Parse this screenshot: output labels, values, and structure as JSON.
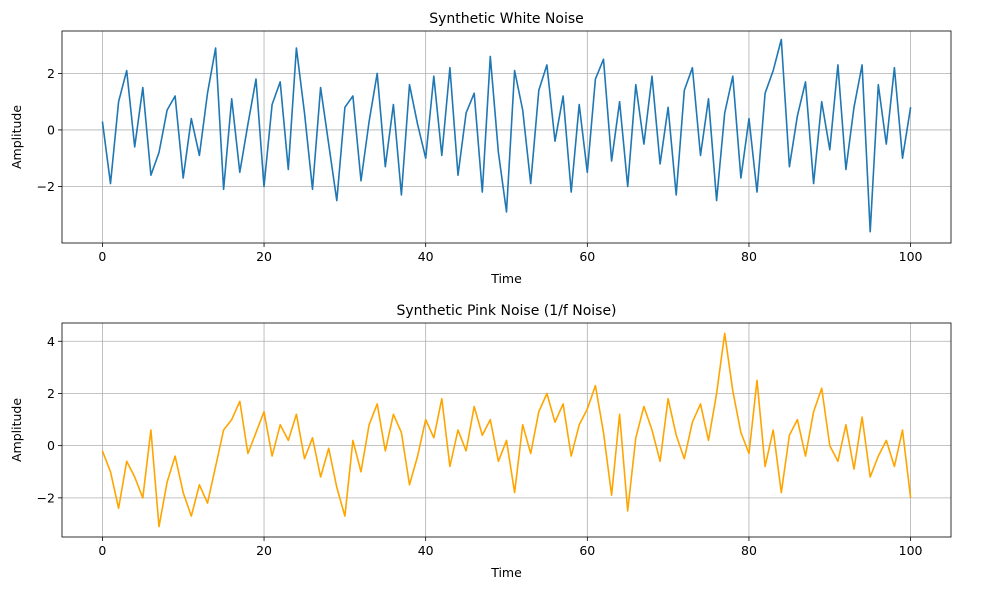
{
  "colors": {
    "white_noise": "#1f77b4",
    "pink_noise": "#ffa500",
    "grid": "#b0b0b0"
  },
  "chart_data": [
    {
      "type": "line",
      "title": "Synthetic White Noise",
      "xlabel": "Time",
      "ylabel": "Amplitude",
      "xlim": [
        -5,
        105
      ],
      "ylim": [
        -4.0,
        3.5
      ],
      "xticks": [
        0,
        20,
        40,
        60,
        80,
        100
      ],
      "yticks": [
        -2,
        0,
        2
      ],
      "xtick_labels": [
        "0",
        "20",
        "40",
        "60",
        "80",
        "100"
      ],
      "ytick_labels": [
        "−2",
        "0",
        "2"
      ],
      "grid": true,
      "series": [
        {
          "color": "#1f77b4",
          "x": [
            0,
            1,
            2,
            3,
            4,
            5,
            6,
            7,
            8,
            9,
            10,
            11,
            12,
            13,
            14,
            15,
            16,
            17,
            18,
            19,
            20,
            21,
            22,
            23,
            24,
            25,
            26,
            27,
            28,
            29,
            30,
            31,
            32,
            33,
            34,
            35,
            36,
            37,
            38,
            39,
            40,
            41,
            42,
            43,
            44,
            45,
            46,
            47,
            48,
            49,
            50,
            51,
            52,
            53,
            54,
            55,
            56,
            57,
            58,
            59,
            60,
            61,
            62,
            63,
            64,
            65,
            66,
            67,
            68,
            69,
            70,
            71,
            72,
            73,
            74,
            75,
            76,
            77,
            78,
            79,
            80,
            81,
            82,
            83,
            84,
            85,
            86,
            87,
            88,
            89,
            90,
            91,
            92,
            93,
            94,
            95,
            96,
            97,
            98,
            99,
            100
          ],
          "y": [
            0.3,
            -1.9,
            1.0,
            2.1,
            -0.6,
            1.5,
            -1.6,
            -0.8,
            0.7,
            1.2,
            -1.7,
            0.4,
            -0.9,
            1.3,
            2.9,
            -2.1,
            1.1,
            -1.5,
            0.2,
            1.8,
            -2.0,
            0.9,
            1.7,
            -1.4,
            2.9,
            0.6,
            -2.1,
            1.5,
            -0.5,
            -2.5,
            0.8,
            1.2,
            -1.8,
            0.3,
            2.0,
            -1.3,
            0.9,
            -2.3,
            1.6,
            0.2,
            -1.0,
            1.9,
            -0.9,
            2.2,
            -1.6,
            0.6,
            1.3,
            -2.2,
            2.6,
            -0.8,
            -2.9,
            2.1,
            0.7,
            -1.9,
            1.4,
            2.3,
            -0.4,
            1.2,
            -2.2,
            0.9,
            -1.5,
            1.8,
            2.5,
            -1.1,
            1.0,
            -2.0,
            1.6,
            -0.5,
            1.9,
            -1.2,
            0.8,
            -2.3,
            1.4,
            2.2,
            -0.9,
            1.1,
            -2.5,
            0.6,
            1.9,
            -1.7,
            0.4,
            -2.2,
            1.3,
            2.1,
            3.2,
            -1.3,
            0.5,
            1.7,
            -1.9,
            1.0,
            -0.7,
            2.3,
            -1.4,
            0.8,
            2.3,
            -3.6,
            1.6,
            -0.5,
            2.2,
            -1.0,
            0.8
          ]
        }
      ]
    },
    {
      "type": "line",
      "title": "Synthetic Pink Noise (1/f Noise)",
      "xlabel": "Time",
      "ylabel": "Amplitude",
      "xlim": [
        -5,
        105
      ],
      "ylim": [
        -3.5,
        4.7
      ],
      "xticks": [
        0,
        20,
        40,
        60,
        80,
        100
      ],
      "yticks": [
        -2,
        0,
        2,
        4
      ],
      "xtick_labels": [
        "0",
        "20",
        "40",
        "60",
        "80",
        "100"
      ],
      "ytick_labels": [
        "−2",
        "0",
        "2",
        "4"
      ],
      "grid": true,
      "series": [
        {
          "color": "#ffa500",
          "x": [
            0,
            1,
            2,
            3,
            4,
            5,
            6,
            7,
            8,
            9,
            10,
            11,
            12,
            13,
            14,
            15,
            16,
            17,
            18,
            19,
            20,
            21,
            22,
            23,
            24,
            25,
            26,
            27,
            28,
            29,
            30,
            31,
            32,
            33,
            34,
            35,
            36,
            37,
            38,
            39,
            40,
            41,
            42,
            43,
            44,
            45,
            46,
            47,
            48,
            49,
            50,
            51,
            52,
            53,
            54,
            55,
            56,
            57,
            58,
            59,
            60,
            61,
            62,
            63,
            64,
            65,
            66,
            67,
            68,
            69,
            70,
            71,
            72,
            73,
            74,
            75,
            76,
            77,
            78,
            79,
            80,
            81,
            82,
            83,
            84,
            85,
            86,
            87,
            88,
            89,
            90,
            91,
            92,
            93,
            94,
            95,
            96,
            97,
            98,
            99,
            100
          ],
          "y": [
            -0.2,
            -1.0,
            -2.4,
            -0.6,
            -1.2,
            -2.0,
            0.6,
            -3.1,
            -1.4,
            -0.4,
            -1.8,
            -2.7,
            -1.5,
            -2.2,
            -0.8,
            0.6,
            1.0,
            1.7,
            -0.3,
            0.5,
            1.3,
            -0.4,
            0.8,
            0.2,
            1.2,
            -0.5,
            0.3,
            -1.2,
            -0.1,
            -1.6,
            -2.7,
            0.2,
            -1.0,
            0.8,
            1.6,
            -0.2,
            1.2,
            0.5,
            -1.5,
            -0.4,
            1.0,
            0.3,
            1.8,
            -0.8,
            0.6,
            -0.2,
            1.5,
            0.4,
            1.0,
            -0.6,
            0.2,
            -1.8,
            0.8,
            -0.3,
            1.3,
            2.0,
            0.9,
            1.6,
            -0.4,
            0.8,
            1.4,
            2.3,
            0.5,
            -1.9,
            1.2,
            -2.5,
            0.3,
            1.5,
            0.6,
            -0.6,
            1.8,
            0.4,
            -0.5,
            0.9,
            1.6,
            0.2,
            2.0,
            4.3,
            2.1,
            0.5,
            -0.3,
            2.5,
            -0.8,
            0.6,
            -1.8,
            0.4,
            1.0,
            -0.4,
            1.3,
            2.2,
            0.0,
            -0.6,
            0.8,
            -0.9,
            1.1,
            -1.2,
            -0.4,
            0.2,
            -0.8,
            0.6,
            -2.0
          ]
        }
      ]
    }
  ]
}
